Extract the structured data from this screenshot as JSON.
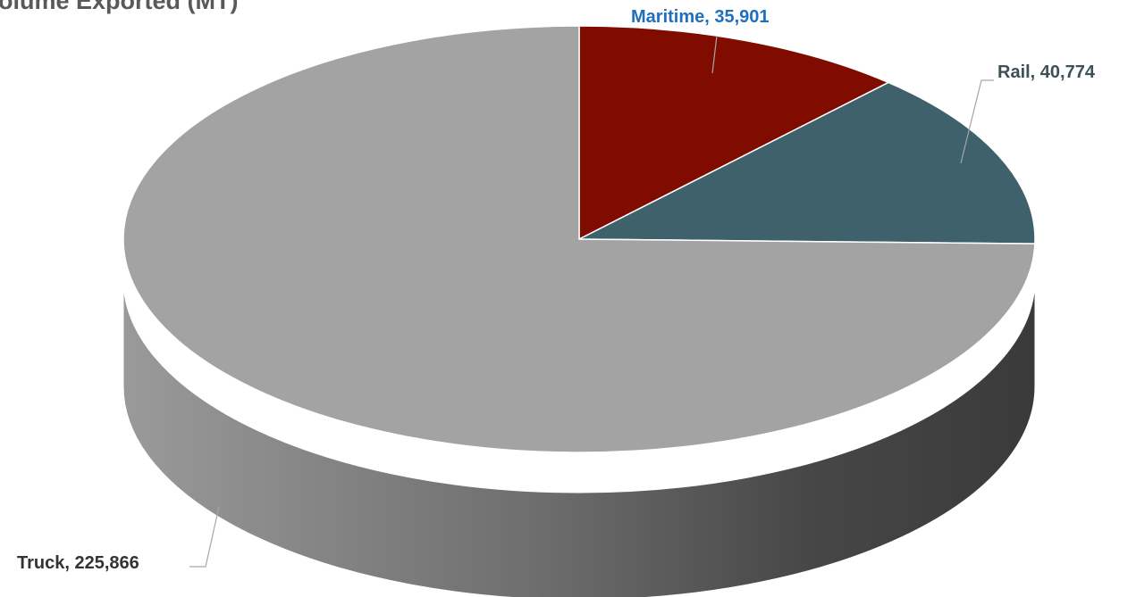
{
  "chart_data": {
    "type": "pie",
    "style": "3d",
    "title": "Volume Exported (MT)",
    "slices": [
      {
        "name": "Maritime",
        "value": 35901,
        "label": "Maritime,  35,901",
        "color": "#800c00",
        "label_color": "#1f6fbf"
      },
      {
        "name": "Rail",
        "value": 40774,
        "label": "Rail,  40,774",
        "color": "#3e616b",
        "label_color": "#3e5058"
      },
      {
        "name": "Truck",
        "value": 225866,
        "label": "Truck,  225,866",
        "color": "#a3a3a3",
        "label_color": "#333333"
      }
    ],
    "legend": "none"
  }
}
